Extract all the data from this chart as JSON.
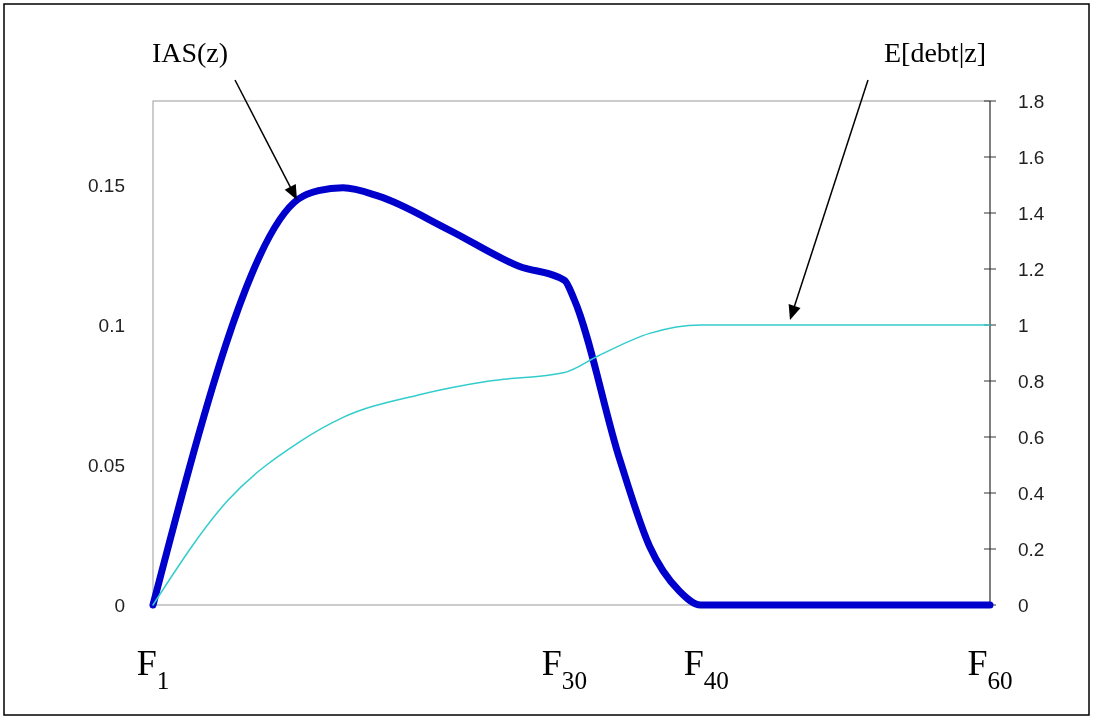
{
  "chart_data": {
    "type": "line",
    "xlim": [
      1,
      60
    ],
    "xticks": [
      {
        "value": 1,
        "label": "F$_{1}$"
      },
      {
        "value": 30,
        "label": "F$_{30}$"
      },
      {
        "value": 40,
        "label": "F$_{40}$"
      },
      {
        "value": 60,
        "label": "F$_{60}$"
      }
    ],
    "ylim": [
      0,
      0.18
    ],
    "yticks": [
      0,
      0.05,
      0.1,
      0.15
    ],
    "y2lim": [
      0,
      1.8
    ],
    "y2ticks": [
      0,
      0.2,
      0.4,
      0.6,
      0.8,
      1,
      1.2,
      1.4,
      1.6,
      1.8
    ],
    "grid": false,
    "marker": "none",
    "series": [
      {
        "color": "#0000cc",
        "x": [
          1,
          11.25,
          12.66,
          14.4,
          16.9,
          21.85,
          26.8,
          30,
          30.7,
          33.9,
          36,
          38.1,
          39.6,
          60
        ],
        "values": [
          0,
          0.145,
          0.148,
          0.149,
          0.146,
          0.134,
          0.121,
          0.116,
          0.109,
          0.052,
          0.021,
          0.005,
          0,
          0
        ]
      },
      {
        "color": "#33cccc",
        "axis": "y2",
        "x": [
          1,
          6.3,
          11.25,
          14.4,
          19.7,
          24.7,
          30,
          32.4,
          36,
          39.6,
          60
        ],
        "values": [
          0,
          0.375,
          0.58,
          0.67,
          0.75,
          0.8,
          0.83,
          0.89,
          0.97,
          1,
          1
        ]
      }
    ],
    "annotations": [
      "IAS(z)",
      "E[debt|z]"
    ]
  }
}
